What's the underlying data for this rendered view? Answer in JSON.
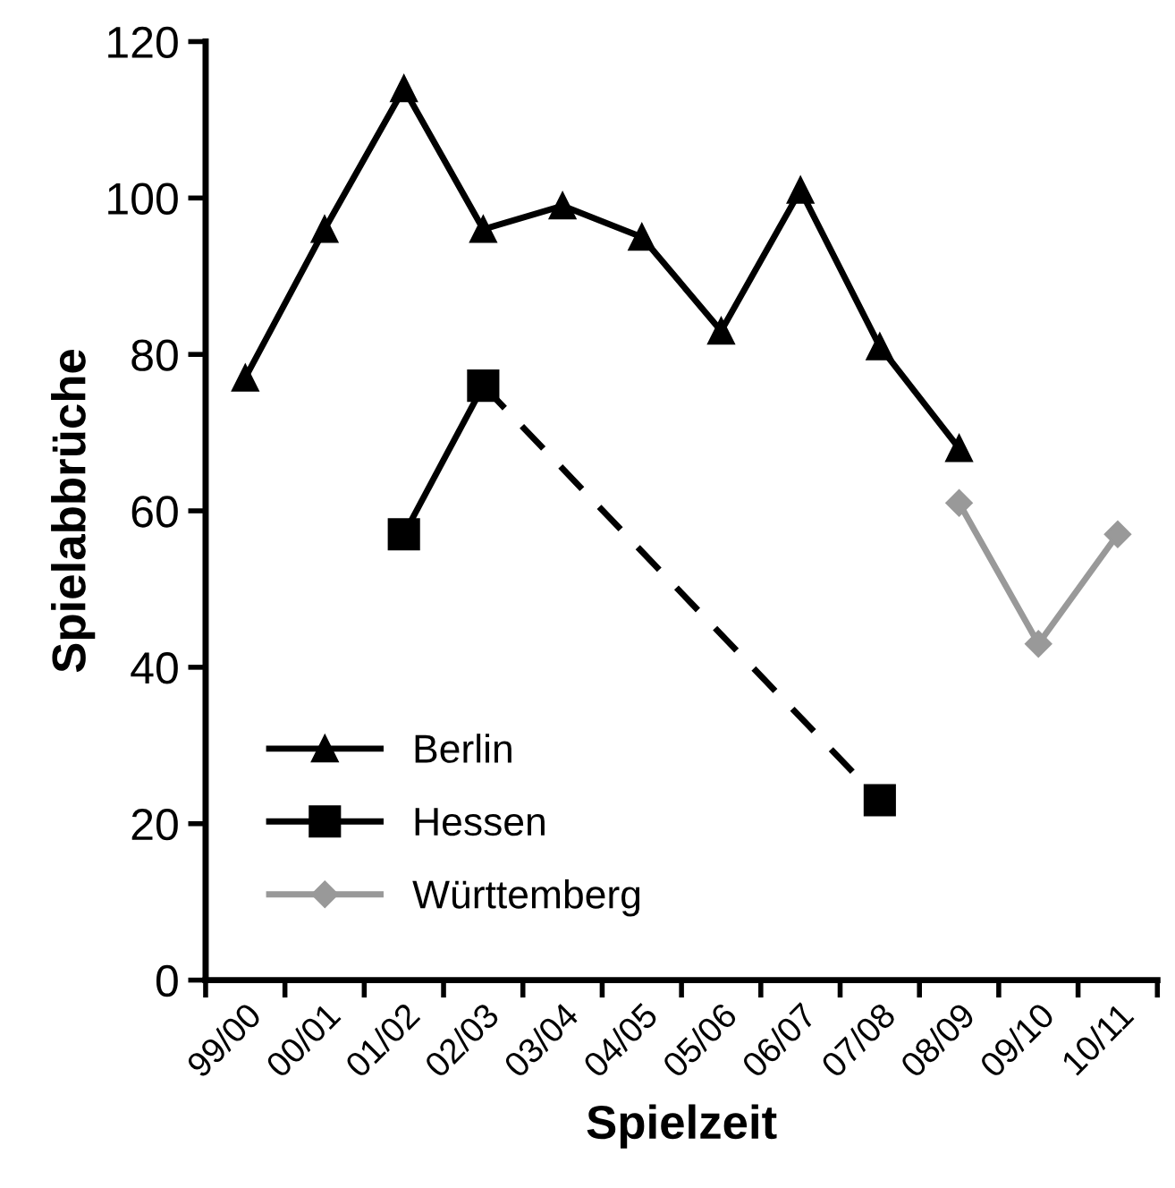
{
  "chart_data": {
    "type": "line",
    "xlabel": "Spielzeit",
    "ylabel": "Spielabbrüche",
    "categories": [
      "99/00",
      "00/01",
      "01/02",
      "02/03",
      "03/04",
      "04/05",
      "05/06",
      "06/07",
      "07/08",
      "08/09",
      "09/10",
      "10/11"
    ],
    "series": [
      {
        "name": "Berlin",
        "color": "#000000",
        "marker": "triangle",
        "line_style": "solid",
        "values": [
          77,
          96,
          114,
          96,
          99,
          95,
          83,
          101,
          81,
          68,
          null,
          null
        ]
      },
      {
        "name": "Hessen",
        "color": "#000000",
        "marker": "square",
        "line_style": "solid",
        "values": [
          null,
          null,
          57,
          76,
          null,
          null,
          null,
          null,
          23,
          null,
          null,
          null
        ]
      },
      {
        "name": "Württemberg",
        "color": "#999999",
        "marker": "diamond",
        "line_style": "solid",
        "values": [
          null,
          null,
          null,
          null,
          null,
          null,
          null,
          null,
          null,
          61,
          43,
          57
        ]
      }
    ],
    "ylim": [
      0,
      120
    ],
    "yticks": [
      0,
      20,
      40,
      60,
      80,
      100,
      120
    ],
    "grid": false,
    "legend": "bottom left"
  }
}
